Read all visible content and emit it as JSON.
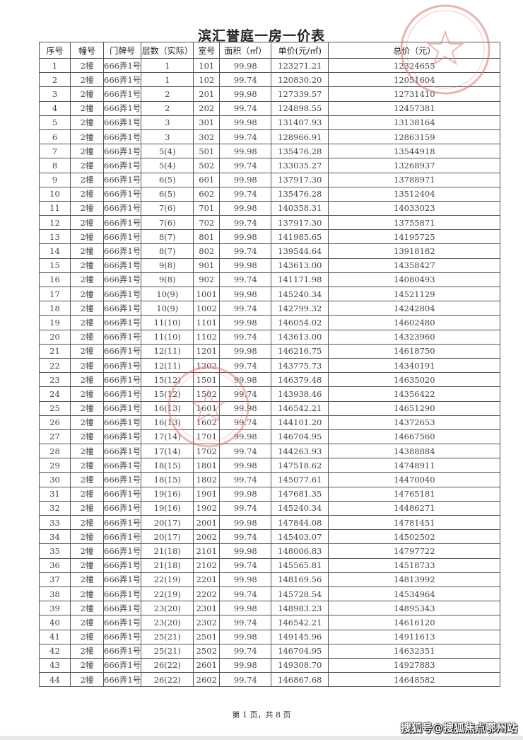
{
  "title": "滨汇誉庭一房一价表",
  "columns": [
    "序号",
    "幢号",
    "门牌号",
    "层数（实际）",
    "室号",
    "面积（㎡）",
    "单价(元/㎡)",
    "总价（元）"
  ],
  "rows": [
    [
      "1",
      "2幢",
      "666弄1号",
      "1",
      "101",
      "99.98",
      "123271.21",
      "12324655"
    ],
    [
      "2",
      "2幢",
      "666弄1号",
      "1",
      "102",
      "99.74",
      "120830.20",
      "12051604"
    ],
    [
      "3",
      "2幢",
      "666弄1号",
      "2",
      "201",
      "99.98",
      "127339.57",
      "12731410"
    ],
    [
      "4",
      "2幢",
      "666弄1号",
      "2",
      "202",
      "99.74",
      "124898.55",
      "12457381"
    ],
    [
      "5",
      "2幢",
      "666弄1号",
      "3",
      "301",
      "99.98",
      "131407.93",
      "13138164"
    ],
    [
      "6",
      "2幢",
      "666弄1号",
      "3",
      "302",
      "99.74",
      "128966.91",
      "12863159"
    ],
    [
      "7",
      "2幢",
      "666弄1号",
      "5(4)",
      "501",
      "99.98",
      "135476.28",
      "13544918"
    ],
    [
      "8",
      "2幢",
      "666弄1号",
      "5(4)",
      "502",
      "99.74",
      "133035.27",
      "13268937"
    ],
    [
      "9",
      "2幢",
      "666弄1号",
      "6(5)",
      "601",
      "99.98",
      "137917.30",
      "13788971"
    ],
    [
      "10",
      "2幢",
      "666弄1号",
      "6(5)",
      "602",
      "99.74",
      "135476.28",
      "13512404"
    ],
    [
      "11",
      "2幢",
      "666弄1号",
      "7(6)",
      "701",
      "99.98",
      "140358.31",
      "14033023"
    ],
    [
      "12",
      "2幢",
      "666弄1号",
      "7(6)",
      "702",
      "99.74",
      "137917.30",
      "13755871"
    ],
    [
      "13",
      "2幢",
      "666弄1号",
      "8(7)",
      "801",
      "99.98",
      "141985.65",
      "14195725"
    ],
    [
      "14",
      "2幢",
      "666弄1号",
      "8(7)",
      "802",
      "99.74",
      "139544.64",
      "13918182"
    ],
    [
      "15",
      "2幢",
      "666弄1号",
      "9(8)",
      "901",
      "99.98",
      "143613.00",
      "14358427"
    ],
    [
      "16",
      "2幢",
      "666弄1号",
      "9(8)",
      "902",
      "99.74",
      "141171.98",
      "14080493"
    ],
    [
      "17",
      "2幢",
      "666弄1号",
      "10(9)",
      "1001",
      "99.98",
      "145240.34",
      "14521129"
    ],
    [
      "18",
      "2幢",
      "666弄1号",
      "10(9)",
      "1002",
      "99.74",
      "142799.32",
      "14242804"
    ],
    [
      "19",
      "2幢",
      "666弄1号",
      "11(10)",
      "1101",
      "99.98",
      "146054.02",
      "14602480"
    ],
    [
      "20",
      "2幢",
      "666弄1号",
      "11(10)",
      "1102",
      "99.74",
      "143613.00",
      "14323960"
    ],
    [
      "21",
      "2幢",
      "666弄1号",
      "12(11)",
      "1201",
      "99.98",
      "146216.75",
      "14618750"
    ],
    [
      "22",
      "2幢",
      "666弄1号",
      "12(11)",
      "1202",
      "99.74",
      "143775.73",
      "14340191"
    ],
    [
      "23",
      "2幢",
      "666弄1号",
      "15(12)",
      "1501",
      "99.98",
      "146379.48",
      "14635020"
    ],
    [
      "24",
      "2幢",
      "666弄1号",
      "15(12)",
      "1502",
      "99.74",
      "143938.46",
      "14356422"
    ],
    [
      "25",
      "2幢",
      "666弄1号",
      "16(13)",
      "1601",
      "99.98",
      "146542.21",
      "14651290"
    ],
    [
      "26",
      "2幢",
      "666弄1号",
      "16(13)",
      "1602",
      "99.74",
      "144101.20",
      "14372653"
    ],
    [
      "27",
      "2幢",
      "666弄1号",
      "17(14)",
      "1701",
      "99.98",
      "146704.95",
      "14667560"
    ],
    [
      "28",
      "2幢",
      "666弄1号",
      "17(14)",
      "1702",
      "99.74",
      "144263.93",
      "14388884"
    ],
    [
      "29",
      "2幢",
      "666弄1号",
      "18(15)",
      "1801",
      "99.98",
      "147518.62",
      "14748911"
    ],
    [
      "30",
      "2幢",
      "666弄1号",
      "18(15)",
      "1802",
      "99.74",
      "145077.61",
      "14470040"
    ],
    [
      "31",
      "2幢",
      "666弄1号",
      "19(16)",
      "1901",
      "99.98",
      "147681.35",
      "14765181"
    ],
    [
      "32",
      "2幢",
      "666弄1号",
      "19(16)",
      "1902",
      "99.74",
      "145240.34",
      "14486271"
    ],
    [
      "33",
      "2幢",
      "666弄1号",
      "20(17)",
      "2001",
      "99.98",
      "147844.08",
      "14781451"
    ],
    [
      "34",
      "2幢",
      "666弄1号",
      "20(17)",
      "2002",
      "99.74",
      "145403.07",
      "14502502"
    ],
    [
      "35",
      "2幢",
      "666弄1号",
      "21(18)",
      "2101",
      "99.98",
      "148006.83",
      "14797722"
    ],
    [
      "36",
      "2幢",
      "666弄1号",
      "21(18)",
      "2102",
      "99.74",
      "145565.81",
      "14518733"
    ],
    [
      "37",
      "2幢",
      "666弄1号",
      "22(19)",
      "2201",
      "99.98",
      "148169.56",
      "14813992"
    ],
    [
      "38",
      "2幢",
      "666弄1号",
      "22(19)",
      "2202",
      "99.74",
      "145728.54",
      "14534964"
    ],
    [
      "39",
      "2幢",
      "666弄1号",
      "23(20)",
      "2301",
      "99.98",
      "148983.23",
      "14895343"
    ],
    [
      "40",
      "2幢",
      "666弄1号",
      "23(20)",
      "2302",
      "99.74",
      "146542.21",
      "14616120"
    ],
    [
      "41",
      "2幢",
      "666弄1号",
      "25(21)",
      "2501",
      "99.98",
      "149145.96",
      "14911613"
    ],
    [
      "42",
      "2幢",
      "666弄1号",
      "25(21)",
      "2502",
      "99.74",
      "146704.95",
      "14632351"
    ],
    [
      "43",
      "2幢",
      "666弄1号",
      "26(22)",
      "2601",
      "99.98",
      "149308.70",
      "14927883"
    ],
    [
      "44",
      "2幢",
      "666弄1号",
      "26(22)",
      "2602",
      "99.74",
      "146867.68",
      "14648582"
    ]
  ],
  "footer": "第 1 页，共 8 页",
  "watermark": "搜狐号@搜狐焦点鄂州站",
  "stamp_color": "#d9534f"
}
